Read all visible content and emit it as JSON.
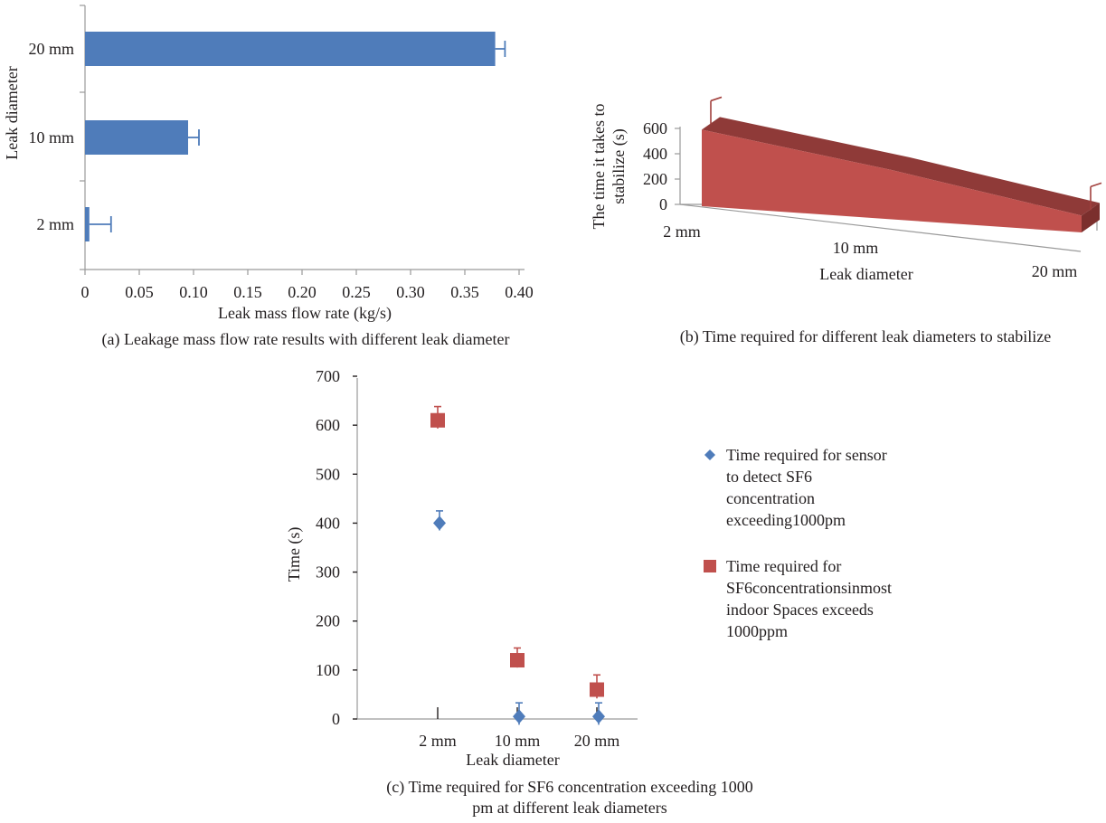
{
  "chart_data": [
    {
      "type": "bar",
      "orientation": "horizontal",
      "categories": [
        "2 mm",
        "10 mm",
        "20 mm"
      ],
      "values": [
        0.004,
        0.095,
        0.378
      ],
      "error_plus": [
        0.02,
        0.01,
        0.009
      ],
      "xlabel": "Leak mass flow rate (kg/s)",
      "ylabel": "Leak diameter",
      "xlim": [
        0,
        0.4
      ],
      "xticks": [
        "0",
        "0.05",
        "0.10",
        "0.15",
        "0.20",
        "0.25",
        "0.30",
        "0.35",
        "0.40"
      ],
      "color": "#4f7cba",
      "caption": "(a) Leakage mass flow rate results with different leak diameter",
      "grid": false
    },
    {
      "type": "area",
      "style": "3d",
      "categories": [
        "2 mm",
        "10 mm",
        "20 mm"
      ],
      "values": [
        590,
        380,
        130
      ],
      "xlabel": "Leak diameter",
      "ylabel_line1": "The time it takes to",
      "ylabel_line2": "stabilize (s)",
      "ylim": [
        0,
        600
      ],
      "yticks": [
        "0",
        "200",
        "400",
        "600"
      ],
      "color": "#c0504d",
      "caption": "(b) Time required for different leak diameters to stabilize",
      "grid": false
    },
    {
      "type": "scatter",
      "categories": [
        "2 mm",
        "10 mm",
        "20 mm"
      ],
      "series": [
        {
          "name_lines": [
            "Time required for sensor",
            "to detect SF6",
            "concentration",
            "exceeding1000pm"
          ],
          "marker": "diamond",
          "color": "#4f7cba",
          "values": [
            400,
            5,
            5
          ],
          "error": [
            25,
            28,
            28
          ]
        },
        {
          "name_lines": [
            "Time required for",
            "SF6concentrationsinmost",
            "indoor Spaces exceeds",
            "1000ppm"
          ],
          "marker": "square",
          "color": "#c0504d",
          "values": [
            610,
            120,
            60
          ],
          "error": [
            28,
            25,
            30
          ]
        }
      ],
      "xlabel": "Leak diameter",
      "ylabel": "Time (s)",
      "ylim": [
        0,
        700
      ],
      "yticks": [
        "0",
        "100",
        "200",
        "300",
        "400",
        "500",
        "600",
        "700"
      ],
      "caption_line1": "(c) Time required for SF6 concentration exceeding 1000",
      "caption_line2": "pm at different leak diameters",
      "legend": "right",
      "grid": false
    }
  ]
}
